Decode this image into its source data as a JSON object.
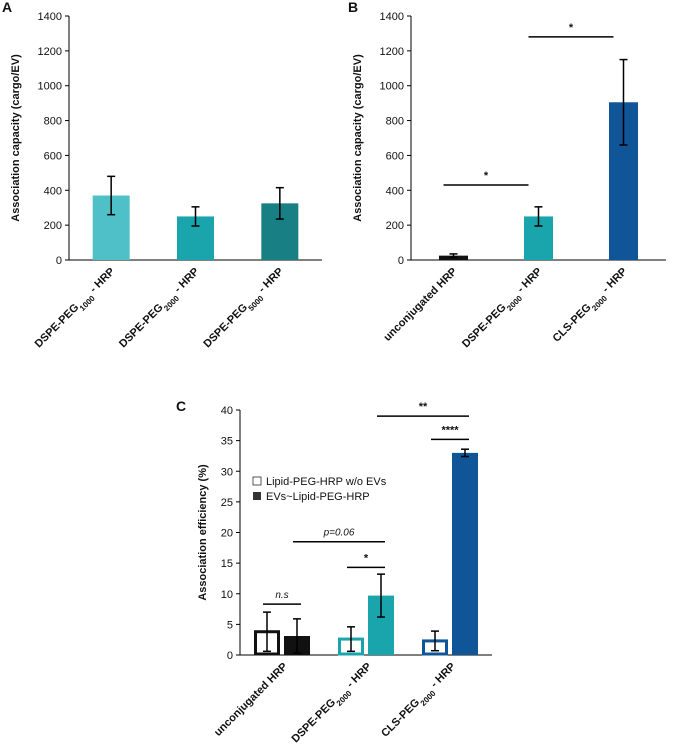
{
  "chart_data": [
    {
      "panel": "A",
      "type": "bar",
      "ylabel": "Association capacity (cargo/EV)",
      "ylim": [
        0,
        1400
      ],
      "yticks": [
        0,
        200,
        400,
        600,
        800,
        1000,
        1200,
        1400
      ],
      "categories": [
        {
          "pre": "DSPE-PEG",
          "sub": "1000",
          "post": " - HRP",
          "color": "#4fc0c8"
        },
        {
          "pre": "DSPE-PEG",
          "sub": "2000",
          "post": " - HRP",
          "color": "#1aa5ac"
        },
        {
          "pre": "DSPE-PEG",
          "sub": "5000",
          "post": " - HRP",
          "color": "#187f84"
        }
      ],
      "values": [
        370,
        250,
        325
      ],
      "errors": [
        110,
        55,
        90
      ]
    },
    {
      "panel": "B",
      "type": "bar",
      "ylabel": "Association capacity (cargo/EV)",
      "ylim": [
        0,
        1400
      ],
      "yticks": [
        0,
        200,
        400,
        600,
        800,
        1000,
        1200,
        1400
      ],
      "categories": [
        {
          "pre": "unconjugated HRP",
          "sub": "",
          "post": "",
          "color": "#111111"
        },
        {
          "pre": "DSPE-PEG",
          "sub": "2000",
          "post": " - HRP",
          "color": "#1aa5ac"
        },
        {
          "pre": "CLS-PEG",
          "sub": "2000",
          "post": " - HRP",
          "color": "#0f5597"
        }
      ],
      "values": [
        25,
        250,
        905
      ],
      "errors": [
        10,
        55,
        245
      ],
      "significance": [
        {
          "from": 0,
          "to": 1,
          "y": 430,
          "label": "*"
        },
        {
          "from": 1,
          "to": 2,
          "y": 1280,
          "label": "*"
        }
      ]
    },
    {
      "panel": "C",
      "type": "bar",
      "ylabel": "Association efficiency (%)",
      "ylim": [
        0,
        40
      ],
      "yticks": [
        0,
        5,
        10,
        15,
        20,
        25,
        30,
        35,
        40
      ],
      "categories": [
        {
          "pre": "unconjugated HRP",
          "sub": "",
          "post": ""
        },
        {
          "pre": "DSPE-PEG",
          "sub": "2000",
          "post": " - HRP"
        },
        {
          "pre": "CLS-PEG",
          "sub": "2000",
          "post": " - HRP"
        }
      ],
      "group_colors": [
        "#111111",
        "#1aa5ac",
        "#0f5597"
      ],
      "series": [
        {
          "name": "Lipid-PEG-HRP w/o EVs",
          "style": "outline",
          "values": [
            3.8,
            2.6,
            2.3
          ],
          "errors": [
            3.2,
            2.0,
            1.6
          ]
        },
        {
          "name": "EVs~Lipid-PEG-HRP",
          "style": "filled",
          "values": [
            3.1,
            9.7,
            33.0
          ],
          "errors": [
            2.8,
            3.5,
            0.6
          ]
        }
      ],
      "significance": [
        {
          "group_a": 0,
          "series_a": 0,
          "group_b": 0,
          "series_b": 1,
          "y": 8.3,
          "label": "n.s",
          "italic": true
        },
        {
          "group_a": 0,
          "series_a": 1,
          "group_b": 1,
          "series_b": 1,
          "y": 18.5,
          "label": "p=0.06",
          "italic": true
        },
        {
          "group_a": 1,
          "series_a": 0,
          "group_b": 1,
          "series_b": 1,
          "y": 14.3,
          "label": "*",
          "italic": false
        },
        {
          "group_a": 2,
          "series_a": 0,
          "group_b": 2,
          "series_b": 1,
          "y": 35.2,
          "label": "****",
          "italic": false
        },
        {
          "group_a": 1,
          "series_a": 1,
          "group_b": 2,
          "series_b": 1,
          "y": 39.0,
          "label": "**",
          "italic": false
        }
      ]
    }
  ]
}
